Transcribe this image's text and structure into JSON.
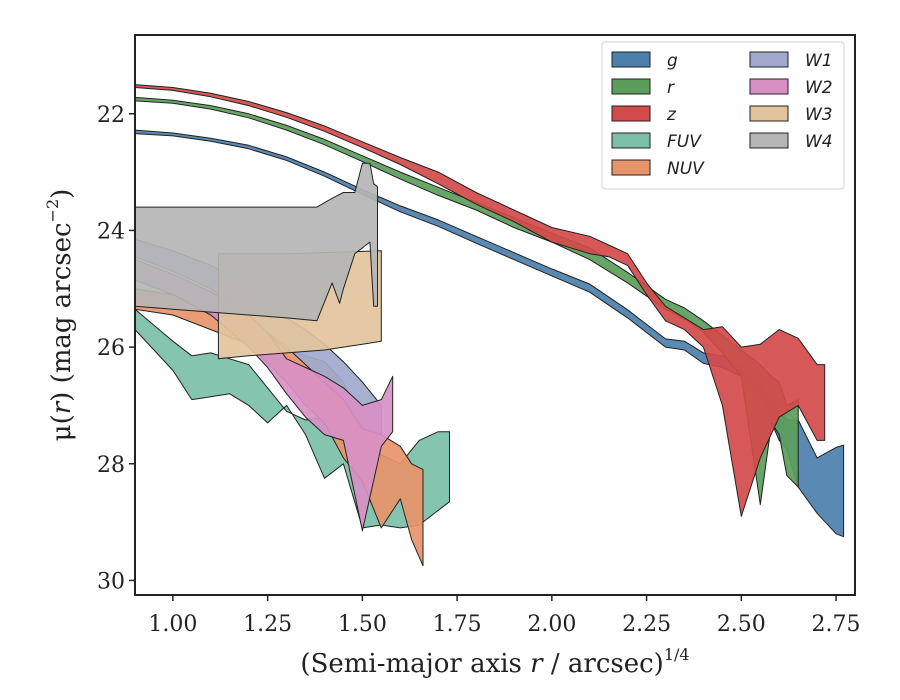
{
  "chart_data": {
    "type": "area",
    "title": "",
    "xlabel": "(Semi-major axis r / arcsec)",
    "xlabel_parts": {
      "pre": "(Semi-major axis ",
      "var": "r",
      "post": " / arcsec)",
      "sup": "1/4"
    },
    "ylabel": "μ(r) (mag arcsec⁻²)",
    "ylabel_parts": {
      "pre": "μ(",
      "var": "r",
      "post": ") (mag arcsec",
      "sup": "−2",
      "end": ")"
    },
    "xlim": [
      0.9,
      2.8
    ],
    "ylim": [
      30.25,
      20.65
    ],
    "y_inverted": true,
    "xticks": [
      1.0,
      1.25,
      1.5,
      1.75,
      2.0,
      2.25,
      2.5,
      2.75
    ],
    "xtick_labels": [
      "1.00",
      "1.25",
      "1.50",
      "1.75",
      "2.00",
      "2.25",
      "2.50",
      "2.75"
    ],
    "yticks": [
      22,
      24,
      26,
      28,
      30
    ],
    "ytick_labels": [
      "22",
      "24",
      "26",
      "28",
      "30"
    ],
    "grid": false,
    "legend": {
      "placement": "top-right",
      "columns": 2
    },
    "series": [
      {
        "name": "g",
        "color": "#4c7fac",
        "upper": [
          [
            0.9,
            22.28
          ],
          [
            1.0,
            22.33
          ],
          [
            1.1,
            22.42
          ],
          [
            1.2,
            22.54
          ],
          [
            1.3,
            22.74
          ],
          [
            1.4,
            23.0
          ],
          [
            1.5,
            23.3
          ],
          [
            1.6,
            23.58
          ],
          [
            1.7,
            23.82
          ],
          [
            1.8,
            24.1
          ],
          [
            1.9,
            24.38
          ],
          [
            2.0,
            24.66
          ],
          [
            2.1,
            24.92
          ],
          [
            2.2,
            25.36
          ],
          [
            2.3,
            25.86
          ],
          [
            2.35,
            25.9
          ],
          [
            2.4,
            26.1
          ],
          [
            2.45,
            26.15
          ],
          [
            2.5,
            26.3
          ],
          [
            2.55,
            26.6
          ],
          [
            2.6,
            27.1
          ],
          [
            2.62,
            27.25
          ],
          [
            2.65,
            27.25
          ],
          [
            2.7,
            27.9
          ],
          [
            2.75,
            27.72
          ],
          [
            2.77,
            27.68
          ]
        ],
        "lower": [
          [
            0.9,
            22.34
          ],
          [
            1.0,
            22.38
          ],
          [
            1.1,
            22.47
          ],
          [
            1.2,
            22.6
          ],
          [
            1.3,
            22.8
          ],
          [
            1.4,
            23.07
          ],
          [
            1.5,
            23.38
          ],
          [
            1.6,
            23.68
          ],
          [
            1.7,
            23.93
          ],
          [
            1.8,
            24.22
          ],
          [
            1.9,
            24.5
          ],
          [
            2.0,
            24.78
          ],
          [
            2.1,
            25.06
          ],
          [
            2.2,
            25.5
          ],
          [
            2.3,
            26.0
          ],
          [
            2.35,
            26.05
          ],
          [
            2.4,
            26.28
          ],
          [
            2.45,
            26.35
          ],
          [
            2.5,
            26.5
          ],
          [
            2.55,
            26.85
          ],
          [
            2.6,
            27.6
          ],
          [
            2.62,
            27.75
          ],
          [
            2.65,
            28.4
          ],
          [
            2.7,
            28.85
          ],
          [
            2.75,
            29.2
          ],
          [
            2.77,
            29.25
          ]
        ]
      },
      {
        "name": "r",
        "color": "#5b9e5b",
        "upper": [
          [
            0.9,
            21.72
          ],
          [
            1.0,
            21.77
          ],
          [
            1.1,
            21.86
          ],
          [
            1.2,
            22.0
          ],
          [
            1.3,
            22.2
          ],
          [
            1.4,
            22.44
          ],
          [
            1.5,
            22.72
          ],
          [
            1.6,
            23.0
          ],
          [
            1.7,
            23.26
          ],
          [
            1.8,
            23.52
          ],
          [
            1.9,
            23.78
          ],
          [
            2.0,
            24.05
          ],
          [
            2.1,
            24.3
          ],
          [
            2.2,
            24.72
          ],
          [
            2.3,
            25.18
          ],
          [
            2.35,
            25.33
          ],
          [
            2.4,
            25.55
          ],
          [
            2.45,
            25.8
          ],
          [
            2.5,
            26.05
          ],
          [
            2.55,
            26.3
          ],
          [
            2.58,
            26.5
          ],
          [
            2.6,
            26.6
          ],
          [
            2.62,
            27.0
          ],
          [
            2.65,
            26.9
          ]
        ],
        "lower": [
          [
            0.9,
            21.78
          ],
          [
            1.0,
            21.82
          ],
          [
            1.1,
            21.92
          ],
          [
            1.2,
            22.07
          ],
          [
            1.3,
            22.28
          ],
          [
            1.4,
            22.53
          ],
          [
            1.5,
            22.82
          ],
          [
            1.6,
            23.12
          ],
          [
            1.7,
            23.4
          ],
          [
            1.8,
            23.65
          ],
          [
            1.9,
            23.95
          ],
          [
            2.0,
            24.2
          ],
          [
            2.1,
            24.5
          ],
          [
            2.2,
            24.9
          ],
          [
            2.3,
            25.35
          ],
          [
            2.35,
            25.52
          ],
          [
            2.4,
            25.75
          ],
          [
            2.45,
            26.1
          ],
          [
            2.5,
            26.5
          ],
          [
            2.55,
            28.7
          ],
          [
            2.58,
            27.3
          ],
          [
            2.6,
            27.5
          ],
          [
            2.62,
            28.2
          ],
          [
            2.65,
            28.4
          ]
        ]
      },
      {
        "name": "z",
        "color": "#d24a4a",
        "upper": [
          [
            0.9,
            21.5
          ],
          [
            1.0,
            21.55
          ],
          [
            1.1,
            21.65
          ],
          [
            1.2,
            21.79
          ],
          [
            1.3,
            21.98
          ],
          [
            1.4,
            22.21
          ],
          [
            1.5,
            22.48
          ],
          [
            1.6,
            22.75
          ],
          [
            1.7,
            23.0
          ],
          [
            1.8,
            23.35
          ],
          [
            1.9,
            23.65
          ],
          [
            2.0,
            23.95
          ],
          [
            2.1,
            24.1
          ],
          [
            2.15,
            24.25
          ],
          [
            2.2,
            24.4
          ],
          [
            2.25,
            24.9
          ],
          [
            2.3,
            25.3
          ],
          [
            2.35,
            25.5
          ],
          [
            2.4,
            25.7
          ],
          [
            2.45,
            25.65
          ],
          [
            2.5,
            26.0
          ],
          [
            2.55,
            25.95
          ],
          [
            2.6,
            25.7
          ],
          [
            2.65,
            25.85
          ],
          [
            2.7,
            26.3
          ],
          [
            2.72,
            26.3
          ]
        ],
        "lower": [
          [
            0.9,
            21.55
          ],
          [
            1.0,
            21.6
          ],
          [
            1.1,
            21.71
          ],
          [
            1.2,
            21.86
          ],
          [
            1.3,
            22.06
          ],
          [
            1.4,
            22.3
          ],
          [
            1.5,
            22.58
          ],
          [
            1.6,
            22.87
          ],
          [
            1.7,
            23.2
          ],
          [
            1.8,
            23.55
          ],
          [
            1.9,
            23.85
          ],
          [
            2.0,
            24.2
          ],
          [
            2.1,
            24.4
          ],
          [
            2.15,
            24.45
          ],
          [
            2.2,
            24.6
          ],
          [
            2.25,
            25.1
          ],
          [
            2.3,
            25.55
          ],
          [
            2.35,
            25.7
          ],
          [
            2.4,
            26.0
          ],
          [
            2.45,
            27.0
          ],
          [
            2.5,
            28.9
          ],
          [
            2.55,
            27.9
          ],
          [
            2.6,
            27.2
          ],
          [
            2.65,
            27.0
          ],
          [
            2.7,
            27.6
          ],
          [
            2.72,
            27.6
          ]
        ]
      },
      {
        "name": "FUV",
        "color": "#7bbfa8",
        "upper": [
          [
            0.9,
            25.35
          ],
          [
            1.0,
            25.9
          ],
          [
            1.05,
            26.15
          ],
          [
            1.1,
            26.1
          ],
          [
            1.15,
            26.2
          ],
          [
            1.2,
            26.3
          ],
          [
            1.25,
            26.7
          ],
          [
            1.3,
            27.1
          ],
          [
            1.35,
            27.25
          ],
          [
            1.4,
            27.2
          ],
          [
            1.45,
            27.25
          ],
          [
            1.5,
            27.7
          ],
          [
            1.55,
            27.85
          ],
          [
            1.6,
            28.0
          ],
          [
            1.65,
            27.6
          ],
          [
            1.7,
            27.45
          ],
          [
            1.73,
            27.45
          ]
        ],
        "lower": [
          [
            0.9,
            25.7
          ],
          [
            1.0,
            26.4
          ],
          [
            1.05,
            26.9
          ],
          [
            1.1,
            26.85
          ],
          [
            1.15,
            26.8
          ],
          [
            1.2,
            27.0
          ],
          [
            1.25,
            27.3
          ],
          [
            1.3,
            27.0
          ],
          [
            1.35,
            27.5
          ],
          [
            1.4,
            28.25
          ],
          [
            1.45,
            28.0
          ],
          [
            1.5,
            29.1
          ],
          [
            1.55,
            29.05
          ],
          [
            1.6,
            29.1
          ],
          [
            1.65,
            29.05
          ],
          [
            1.7,
            28.8
          ],
          [
            1.73,
            28.65
          ]
        ]
      },
      {
        "name": "NUV",
        "color": "#e8946b",
        "upper": [
          [
            0.9,
            25.0
          ],
          [
            1.0,
            25.1
          ],
          [
            1.1,
            25.35
          ],
          [
            1.2,
            25.5
          ],
          [
            1.3,
            26.05
          ],
          [
            1.35,
            26.15
          ],
          [
            1.4,
            26.25
          ],
          [
            1.45,
            26.6
          ],
          [
            1.5,
            27.3
          ],
          [
            1.55,
            27.5
          ],
          [
            1.6,
            27.7
          ],
          [
            1.63,
            28.0
          ],
          [
            1.66,
            28.1
          ]
        ],
        "lower": [
          [
            0.9,
            25.35
          ],
          [
            1.0,
            25.45
          ],
          [
            1.1,
            25.7
          ],
          [
            1.2,
            25.95
          ],
          [
            1.3,
            26.6
          ],
          [
            1.35,
            27.0
          ],
          [
            1.4,
            27.3
          ],
          [
            1.45,
            27.9
          ],
          [
            1.5,
            28.3
          ],
          [
            1.55,
            29.1
          ],
          [
            1.6,
            28.6
          ],
          [
            1.63,
            29.3
          ],
          [
            1.66,
            29.75
          ]
        ]
      },
      {
        "name": "W1",
        "color": "#9fa9cc",
        "upper": [
          [
            0.9,
            24.15
          ],
          [
            1.0,
            24.35
          ],
          [
            1.1,
            24.6
          ],
          [
            1.2,
            24.95
          ],
          [
            1.25,
            25.3
          ],
          [
            1.3,
            25.5
          ],
          [
            1.35,
            25.7
          ],
          [
            1.4,
            25.95
          ],
          [
            1.45,
            26.25
          ],
          [
            1.5,
            26.6
          ],
          [
            1.55,
            27.0
          ]
        ],
        "lower": [
          [
            0.9,
            24.45
          ],
          [
            1.0,
            24.7
          ],
          [
            1.1,
            25.0
          ],
          [
            1.2,
            25.45
          ],
          [
            1.25,
            25.75
          ],
          [
            1.3,
            26.0
          ],
          [
            1.35,
            26.3
          ],
          [
            1.4,
            26.6
          ],
          [
            1.45,
            26.9
          ],
          [
            1.5,
            27.4
          ],
          [
            1.55,
            27.5
          ]
        ]
      },
      {
        "name": "W2",
        "color": "#d890c4",
        "upper": [
          [
            0.9,
            24.5
          ],
          [
            1.0,
            24.75
          ],
          [
            1.1,
            25.05
          ],
          [
            1.2,
            25.45
          ],
          [
            1.25,
            25.75
          ],
          [
            1.3,
            26.2
          ],
          [
            1.35,
            26.35
          ],
          [
            1.4,
            26.5
          ],
          [
            1.45,
            26.7
          ],
          [
            1.5,
            27.0
          ],
          [
            1.55,
            26.9
          ],
          [
            1.58,
            26.5
          ]
        ],
        "lower": [
          [
            0.9,
            24.85
          ],
          [
            1.0,
            25.1
          ],
          [
            1.1,
            25.45
          ],
          [
            1.2,
            26.0
          ],
          [
            1.25,
            26.35
          ],
          [
            1.3,
            26.8
          ],
          [
            1.35,
            27.2
          ],
          [
            1.4,
            27.5
          ],
          [
            1.45,
            27.6
          ],
          [
            1.5,
            29.15
          ],
          [
            1.55,
            27.7
          ],
          [
            1.58,
            27.45
          ]
        ]
      },
      {
        "name": "W3",
        "color": "#e2c49c",
        "upper": [
          [
            1.12,
            24.4
          ],
          [
            1.2,
            24.4
          ],
          [
            1.3,
            24.4
          ],
          [
            1.4,
            24.38
          ],
          [
            1.5,
            24.36
          ],
          [
            1.55,
            24.35
          ]
        ],
        "lower": [
          [
            1.12,
            26.2
          ],
          [
            1.2,
            26.15
          ],
          [
            1.3,
            26.1
          ],
          [
            1.4,
            26.05
          ],
          [
            1.5,
            25.95
          ],
          [
            1.55,
            25.9
          ]
        ]
      },
      {
        "name": "W4",
        "color": "#b5b5b5",
        "upper": [
          [
            0.9,
            23.6
          ],
          [
            1.0,
            23.6
          ],
          [
            1.1,
            23.6
          ],
          [
            1.2,
            23.6
          ],
          [
            1.3,
            23.6
          ],
          [
            1.38,
            23.6
          ],
          [
            1.42,
            23.45
          ],
          [
            1.45,
            23.35
          ],
          [
            1.48,
            23.35
          ],
          [
            1.5,
            22.85
          ],
          [
            1.52,
            22.85
          ],
          [
            1.53,
            23.2
          ],
          [
            1.54,
            23.25
          ]
        ],
        "lower": [
          [
            0.9,
            25.3
          ],
          [
            1.0,
            25.35
          ],
          [
            1.1,
            25.4
          ],
          [
            1.2,
            25.45
          ],
          [
            1.3,
            25.5
          ],
          [
            1.38,
            25.55
          ],
          [
            1.42,
            24.9
          ],
          [
            1.44,
            25.25
          ],
          [
            1.45,
            25.0
          ],
          [
            1.48,
            24.4
          ],
          [
            1.5,
            24.3
          ],
          [
            1.52,
            24.2
          ],
          [
            1.53,
            25.3
          ],
          [
            1.54,
            25.3
          ]
        ]
      }
    ]
  }
}
